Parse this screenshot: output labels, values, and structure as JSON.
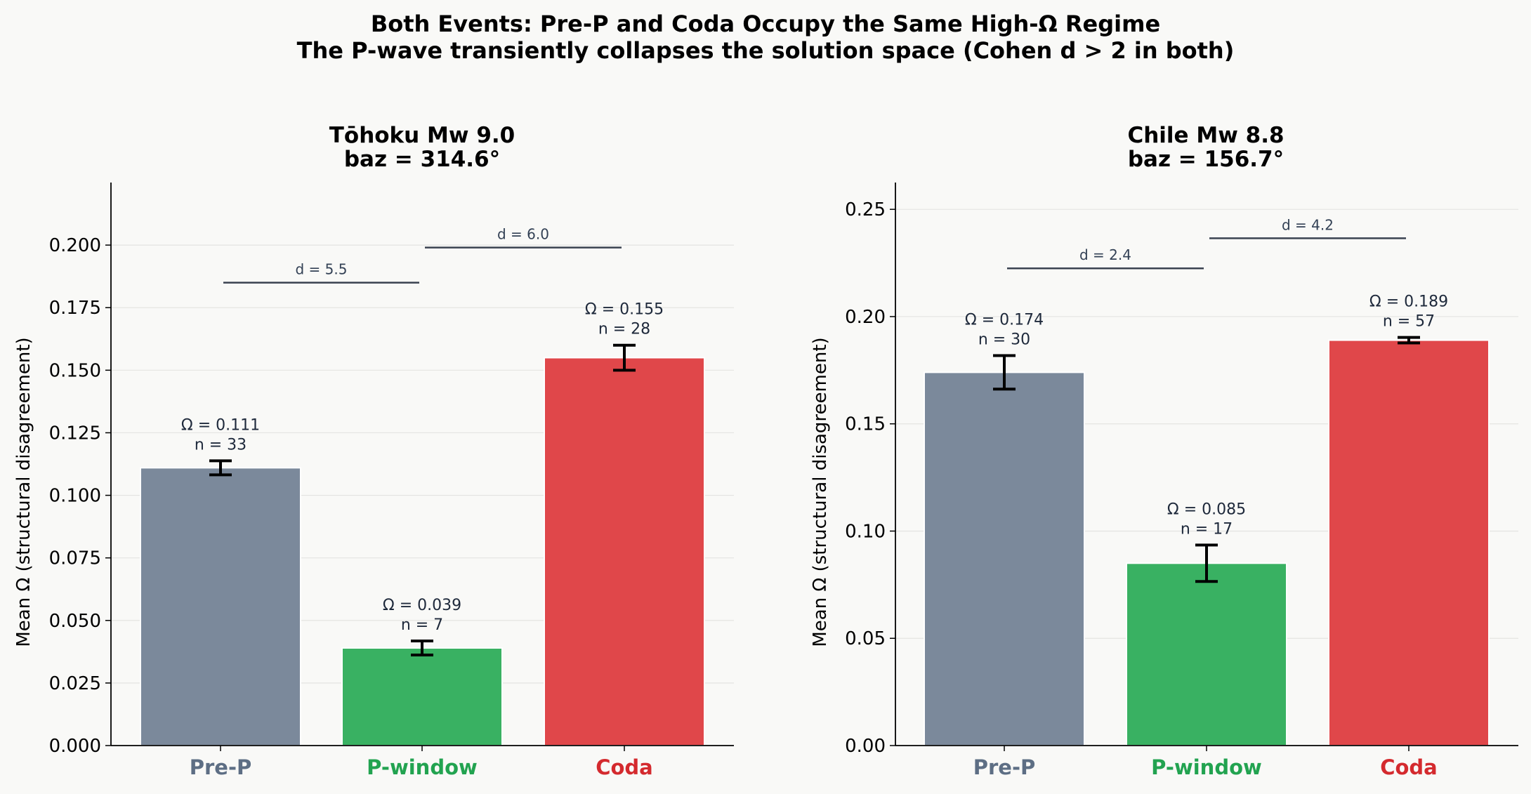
{
  "suptitle": {
    "line1": "Both Events: Pre-P and Coda Occupy the Same High-Ω Regime",
    "line2": "The P-wave transiently collapses the solution space (Cohen d > 2 in both)"
  },
  "colors": {
    "pre": "#7b899b",
    "pwin": "#39b162",
    "coda": "#e0474a",
    "pre_label": "#5d6e84",
    "pwin_label": "#22a350",
    "coda_label": "#d42a2e",
    "bracket": "#3a4250",
    "background": "#f9f9f7"
  },
  "chart_data": [
    {
      "type": "bar",
      "title_line1": "Tōhoku Mw 9.0",
      "title_line2": "baz = 314.6°",
      "ylabel": "Mean Ω (structural disagreement)",
      "categories": [
        "Pre-P",
        "P-window",
        "Coda"
      ],
      "values": [
        0.111,
        0.039,
        0.155
      ],
      "errors": [
        0.0028,
        0.0028,
        0.005
      ],
      "value_labels": [
        "Ω = 0.111",
        "Ω = 0.039",
        "Ω = 0.155"
      ],
      "n_labels": [
        "n = 33",
        "n = 7",
        "n = 28"
      ],
      "ylim": [
        0,
        0.225
      ],
      "yticks": [
        "0.000",
        "0.025",
        "0.050",
        "0.075",
        "0.100",
        "0.125",
        "0.150",
        "0.175",
        "0.200"
      ],
      "ytick_values": [
        0,
        0.025,
        0.05,
        0.075,
        0.1,
        0.125,
        0.15,
        0.175,
        0.2
      ],
      "comparisons": [
        {
          "from": 0,
          "to": 1,
          "label": "d = 5.5",
          "y": 0.185
        },
        {
          "from": 1,
          "to": 2,
          "label": "d = 6.0",
          "y": 0.199
        }
      ],
      "grid": "y"
    },
    {
      "type": "bar",
      "title_line1": "Chile Mw 8.8",
      "title_line2": "baz = 156.7°",
      "ylabel": "Mean Ω (structural disagreement)",
      "categories": [
        "Pre-P",
        "P-window",
        "Coda"
      ],
      "values": [
        0.174,
        0.085,
        0.189
      ],
      "errors": [
        0.0078,
        0.0085,
        0.0013
      ],
      "value_labels": [
        "Ω = 0.174",
        "Ω = 0.085",
        "Ω = 0.189"
      ],
      "n_labels": [
        "n = 30",
        "n = 17",
        "n = 57"
      ],
      "ylim": [
        0,
        0.2625
      ],
      "yticks": [
        "0.00",
        "0.05",
        "0.10",
        "0.15",
        "0.20",
        "0.25"
      ],
      "ytick_values": [
        0,
        0.05,
        0.1,
        0.15,
        0.2,
        0.25
      ],
      "comparisons": [
        {
          "from": 0,
          "to": 1,
          "label": "d = 2.4",
          "y": 0.2225
        },
        {
          "from": 1,
          "to": 2,
          "label": "d = 4.2",
          "y": 0.2365
        }
      ],
      "grid": "y"
    }
  ]
}
